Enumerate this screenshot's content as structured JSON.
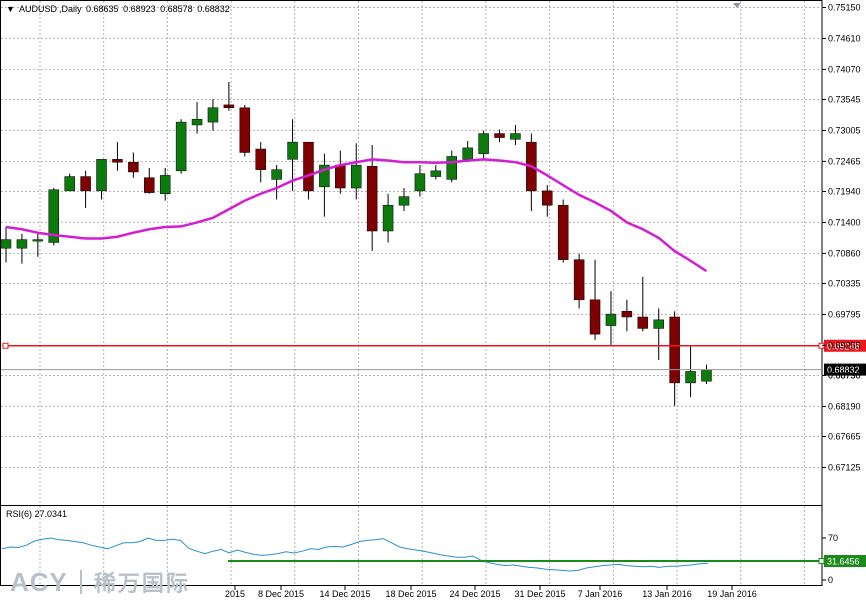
{
  "chart_data": {
    "type": "candlestick",
    "symbol": "AUDUSD",
    "timeframe": "Daily",
    "header_values": [
      "0.68635",
      "0.68923",
      "0.68578",
      "0.68832"
    ],
    "ylim": [
      0.6647,
      0.7528
    ],
    "y_ticks": [
      "0.75150",
      "0.74610",
      "0.74070",
      "0.73545",
      "0.73005",
      "0.72465",
      "0.71940",
      "0.71400",
      "0.70860",
      "0.70335",
      "0.69795",
      "0.69255",
      "0.68730",
      "0.68190",
      "0.67665",
      "0.67125"
    ],
    "x_labels": [
      "2015",
      "8 Dec 2015",
      "14 Dec 2015",
      "18 Dec 2015",
      "24 Dec 2015",
      "31 Dec 2015",
      "7 Jan 2016",
      "13 Jan 2016",
      "19 Jan 2016"
    ],
    "candles": [
      {
        "o": 0.7095,
        "h": 0.7132,
        "l": 0.707,
        "c": 0.711
      },
      {
        "o": 0.7095,
        "h": 0.712,
        "l": 0.7068,
        "c": 0.711
      },
      {
        "o": 0.711,
        "h": 0.7122,
        "l": 0.708,
        "c": 0.711
      },
      {
        "o": 0.7105,
        "h": 0.72,
        "l": 0.71,
        "c": 0.7197
      },
      {
        "o": 0.7195,
        "h": 0.7225,
        "l": 0.7195,
        "c": 0.722
      },
      {
        "o": 0.722,
        "h": 0.723,
        "l": 0.7165,
        "c": 0.7195
      },
      {
        "o": 0.7195,
        "h": 0.725,
        "l": 0.718,
        "c": 0.725
      },
      {
        "o": 0.725,
        "h": 0.728,
        "l": 0.723,
        "c": 0.7245
      },
      {
        "o": 0.7245,
        "h": 0.7262,
        "l": 0.7218,
        "c": 0.7228
      },
      {
        "o": 0.7218,
        "h": 0.7235,
        "l": 0.719,
        "c": 0.7192
      },
      {
        "o": 0.719,
        "h": 0.7235,
        "l": 0.7178,
        "c": 0.7222
      },
      {
        "o": 0.723,
        "h": 0.732,
        "l": 0.7225,
        "c": 0.7315
      },
      {
        "o": 0.731,
        "h": 0.735,
        "l": 0.7295,
        "c": 0.732
      },
      {
        "o": 0.7315,
        "h": 0.7355,
        "l": 0.73,
        "c": 0.734
      },
      {
        "o": 0.7345,
        "h": 0.7385,
        "l": 0.7335,
        "c": 0.734
      },
      {
        "o": 0.734,
        "h": 0.7345,
        "l": 0.7255,
        "c": 0.7262
      },
      {
        "o": 0.7268,
        "h": 0.728,
        "l": 0.721,
        "c": 0.7232
      },
      {
        "o": 0.7215,
        "h": 0.724,
        "l": 0.718,
        "c": 0.7232
      },
      {
        "o": 0.725,
        "h": 0.732,
        "l": 0.7195,
        "c": 0.728
      },
      {
        "o": 0.728,
        "h": 0.728,
        "l": 0.718,
        "c": 0.7195
      },
      {
        "o": 0.7202,
        "h": 0.726,
        "l": 0.715,
        "c": 0.724
      },
      {
        "o": 0.724,
        "h": 0.7265,
        "l": 0.719,
        "c": 0.72
      },
      {
        "o": 0.72,
        "h": 0.7278,
        "l": 0.718,
        "c": 0.724
      },
      {
        "o": 0.7238,
        "h": 0.7275,
        "l": 0.709,
        "c": 0.7125
      },
      {
        "o": 0.7125,
        "h": 0.719,
        "l": 0.7105,
        "c": 0.717
      },
      {
        "o": 0.717,
        "h": 0.72,
        "l": 0.716,
        "c": 0.7185
      },
      {
        "o": 0.7195,
        "h": 0.724,
        "l": 0.7185,
        "c": 0.7225
      },
      {
        "o": 0.722,
        "h": 0.724,
        "l": 0.7215,
        "c": 0.723
      },
      {
        "o": 0.7215,
        "h": 0.7265,
        "l": 0.721,
        "c": 0.7255
      },
      {
        "o": 0.725,
        "h": 0.7282,
        "l": 0.7245,
        "c": 0.727
      },
      {
        "o": 0.726,
        "h": 0.73,
        "l": 0.725,
        "c": 0.7295
      },
      {
        "o": 0.7295,
        "h": 0.7302,
        "l": 0.728,
        "c": 0.7288
      },
      {
        "o": 0.7285,
        "h": 0.731,
        "l": 0.7275,
        "c": 0.7295
      },
      {
        "o": 0.728,
        "h": 0.7295,
        "l": 0.716,
        "c": 0.7195
      },
      {
        "o": 0.7195,
        "h": 0.7205,
        "l": 0.715,
        "c": 0.717
      },
      {
        "o": 0.717,
        "h": 0.718,
        "l": 0.707,
        "c": 0.7075
      },
      {
        "o": 0.7075,
        "h": 0.7085,
        "l": 0.699,
        "c": 0.7005
      },
      {
        "o": 0.7005,
        "h": 0.7075,
        "l": 0.6935,
        "c": 0.6945
      },
      {
        "o": 0.696,
        "h": 0.702,
        "l": 0.6925,
        "c": 0.698
      },
      {
        "o": 0.6985,
        "h": 0.7005,
        "l": 0.695,
        "c": 0.6975
      },
      {
        "o": 0.6975,
        "h": 0.7045,
        "l": 0.695,
        "c": 0.6955
      },
      {
        "o": 0.6955,
        "h": 0.699,
        "l": 0.69,
        "c": 0.697
      },
      {
        "o": 0.6975,
        "h": 0.6985,
        "l": 0.682,
        "c": 0.686
      },
      {
        "o": 0.686,
        "h": 0.6925,
        "l": 0.6835,
        "c": 0.688
      },
      {
        "o": 0.6863,
        "h": 0.6892,
        "l": 0.6858,
        "c": 0.6883
      }
    ],
    "ma_values": [
      0.7132,
      0.7128,
      0.7122,
      0.7118,
      0.7115,
      0.7112,
      0.7112,
      0.7115,
      0.7122,
      0.7128,
      0.7132,
      0.7133,
      0.714,
      0.7148,
      0.7163,
      0.7178,
      0.719,
      0.72,
      0.7213,
      0.7222,
      0.7232,
      0.724,
      0.7245,
      0.725,
      0.7248,
      0.7245,
      0.7245,
      0.7244,
      0.7245,
      0.7248,
      0.725,
      0.7248,
      0.7245,
      0.7238,
      0.7222,
      0.7205,
      0.7188,
      0.7175,
      0.716,
      0.714,
      0.7128,
      0.7113,
      0.709,
      0.7073,
      0.7055
    ],
    "levels": {
      "resistance": {
        "value": 0.69248,
        "label": "0.69248",
        "color": "#e8191e"
      },
      "current": {
        "value": 0.68832,
        "label": "0.68832"
      },
      "hidden_tick": "0.68730"
    },
    "rsi": {
      "label": "RSI(6) 27.0341",
      "ylim": [
        0,
        100
      ],
      "y_ticks": [
        "70",
        "30",
        "0"
      ],
      "level": {
        "value": 31.6456,
        "label": "31.6456",
        "color": "#1a8a1a"
      },
      "values": [
        52,
        55,
        54,
        58,
        65,
        68,
        70,
        67,
        66,
        64,
        62,
        58,
        55,
        52,
        57,
        62,
        62,
        64,
        70,
        66,
        66,
        68,
        66,
        53,
        48,
        44,
        48,
        51,
        45,
        50,
        46,
        43,
        41,
        42,
        44,
        47,
        45,
        48,
        52,
        51,
        55,
        56,
        55,
        59,
        64,
        66,
        67,
        69,
        62,
        55,
        52,
        50,
        48,
        45,
        42,
        40,
        38,
        38,
        40,
        33,
        29,
        26,
        24,
        25,
        23,
        21,
        20,
        18,
        17,
        16,
        15,
        16,
        20,
        22,
        24,
        25,
        26,
        24,
        23,
        22,
        23,
        21,
        23,
        23,
        24,
        25,
        27,
        28
      ]
    },
    "colors": {
      "bull": "#0d7a0d",
      "bear": "#7e0000",
      "ma": "#d41ed4",
      "rsi": "#2c8fd0",
      "grid": "#b4b4b4"
    },
    "logo": {
      "brand": "ACY",
      "chinese": "稀万国际"
    }
  }
}
